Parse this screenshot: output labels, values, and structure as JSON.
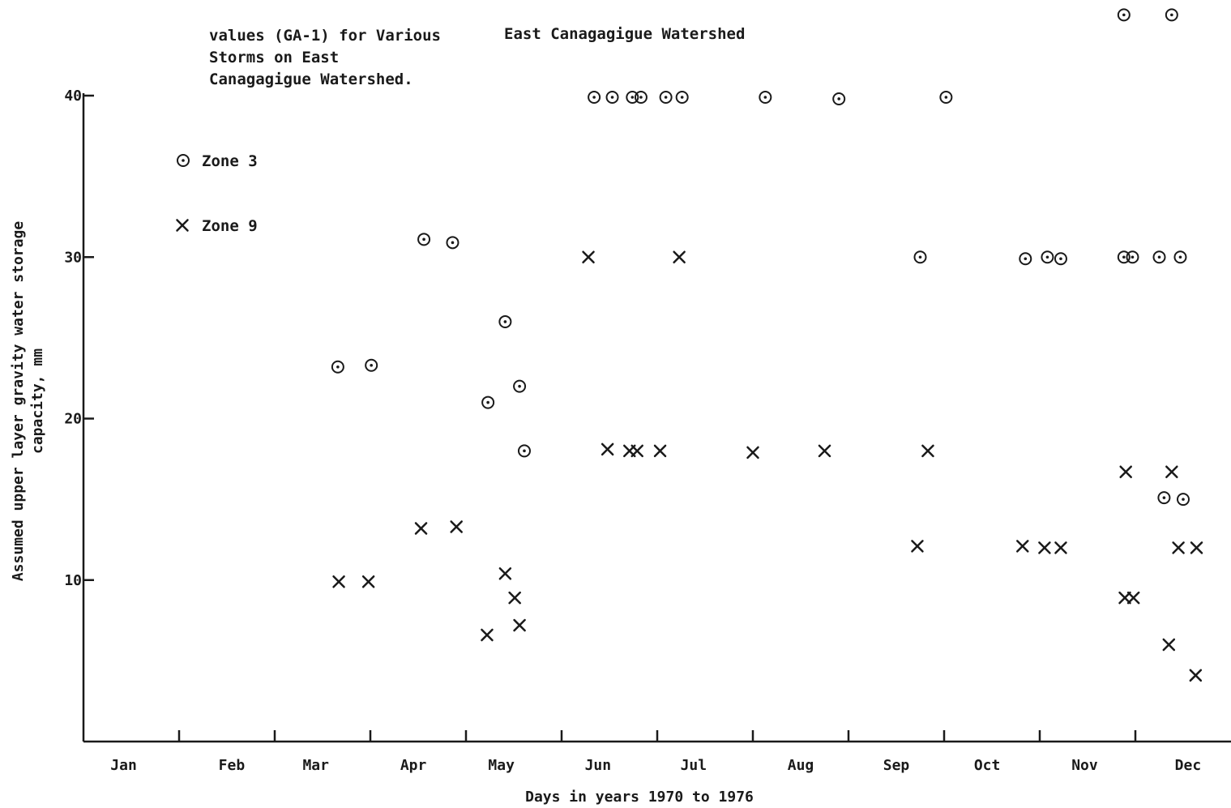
{
  "chart_data": {
    "type": "scatter",
    "title_lines": [
      "values (GA-1) for Various",
      "Storms on East",
      "Canagagigue Watershed."
    ],
    "subtitle": "East Canagagigue Watershed",
    "xlabel": "Days in years 1970 to 1976",
    "ylabel_lines": [
      "Assumed upper layer gravity water storage",
      "capacity, mm"
    ],
    "xlim": [
      0,
      12
    ],
    "ylim": [
      0,
      40
    ],
    "y_ticks": [
      10,
      20,
      30,
      40
    ],
    "y_tick_labels": [
      "10",
      "20",
      "30",
      "40"
    ],
    "x_month_labels": [
      "Jan",
      "Feb",
      "Mar",
      "Apr",
      "May",
      "Jun",
      "Jul",
      "Aug",
      "Sep",
      "Oct",
      "Nov",
      "Dec"
    ],
    "x_label_positions": [
      0.42,
      1.55,
      2.43,
      3.45,
      4.37,
      5.38,
      6.38,
      7.5,
      8.5,
      9.45,
      10.47,
      11.55
    ],
    "x_ticks": [
      1,
      2,
      3,
      4,
      5,
      6,
      7,
      8,
      9,
      10,
      11
    ],
    "grid": false,
    "legend_position": "top-left",
    "legend": [
      {
        "series": "zone3",
        "label": "Zone 3",
        "marker": "circle-dot"
      },
      {
        "series": "zone9",
        "label": "Zone 9",
        "marker": "x"
      }
    ],
    "series": [
      {
        "name": "Zone 3",
        "id": "zone3",
        "marker": "circle-dot",
        "points": [
          [
            2.66,
            23.2
          ],
          [
            3.01,
            23.3
          ],
          [
            3.56,
            31.1
          ],
          [
            3.86,
            30.9
          ],
          [
            4.23,
            21.0
          ],
          [
            4.41,
            26.0
          ],
          [
            4.56,
            22.0
          ],
          [
            4.61,
            18.0
          ],
          [
            5.34,
            39.9
          ],
          [
            5.53,
            39.9
          ],
          [
            5.74,
            39.9
          ],
          [
            5.83,
            39.9
          ],
          [
            6.09,
            39.9
          ],
          [
            6.26,
            39.9
          ],
          [
            7.13,
            39.9
          ],
          [
            7.9,
            39.8
          ],
          [
            9.02,
            39.9
          ],
          [
            8.75,
            30.0
          ],
          [
            9.85,
            29.9
          ],
          [
            10.08,
            30.0
          ],
          [
            10.22,
            29.9
          ],
          [
            10.88,
            45.0
          ],
          [
            11.38,
            45.0
          ],
          [
            10.88,
            30.0
          ],
          [
            10.97,
            30.0
          ],
          [
            11.25,
            30.0
          ],
          [
            11.47,
            30.0
          ],
          [
            11.3,
            15.1
          ],
          [
            11.5,
            15.0
          ]
        ]
      },
      {
        "name": "Zone 9",
        "id": "zone9",
        "marker": "x",
        "points": [
          [
            2.67,
            9.9
          ],
          [
            2.98,
            9.9
          ],
          [
            3.53,
            13.2
          ],
          [
            3.9,
            13.3
          ],
          [
            4.22,
            6.6
          ],
          [
            4.41,
            10.4
          ],
          [
            4.51,
            8.9
          ],
          [
            4.56,
            7.2
          ],
          [
            5.28,
            30.0
          ],
          [
            5.48,
            18.1
          ],
          [
            5.71,
            18.0
          ],
          [
            5.79,
            18.0
          ],
          [
            6.03,
            18.0
          ],
          [
            6.23,
            30.0
          ],
          [
            7.0,
            17.9
          ],
          [
            7.75,
            18.0
          ],
          [
            8.83,
            18.0
          ],
          [
            8.72,
            12.1
          ],
          [
            9.82,
            12.1
          ],
          [
            10.05,
            12.0
          ],
          [
            10.22,
            12.0
          ],
          [
            10.9,
            16.7
          ],
          [
            11.38,
            16.7
          ],
          [
            10.89,
            8.9
          ],
          [
            10.98,
            8.9
          ],
          [
            11.35,
            6.0
          ],
          [
            11.45,
            12.0
          ],
          [
            11.64,
            12.0
          ],
          [
            11.63,
            4.1
          ]
        ]
      }
    ]
  }
}
